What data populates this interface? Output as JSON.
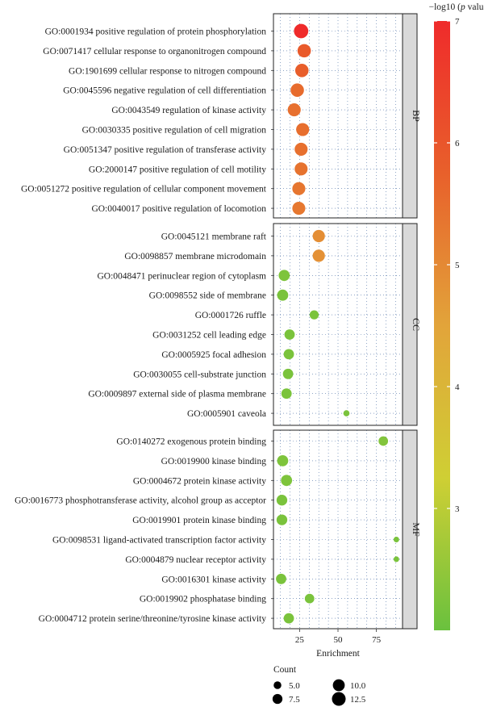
{
  "chart_data": {
    "type": "scatter",
    "xlabel": "Enrichment",
    "xlim": [
      8,
      92
    ],
    "xticks": [
      25,
      50,
      75
    ],
    "x_tick_labels": [
      "25",
      "50",
      "75"
    ],
    "grid": true,
    "color_legend": {
      "title_prefix": "−log10 (",
      "title_italic": "p",
      "title_suffix": " value)",
      "range": [
        2,
        7
      ],
      "ticks": [
        3,
        4,
        5,
        6,
        7
      ],
      "tick_labels": [
        "3",
        "4",
        "5",
        "6",
        "7"
      ],
      "colors": [
        "#6ac13e",
        "#cfcf34",
        "#e2a43a",
        "#e8602b",
        "#ef2b2b"
      ]
    },
    "size_legend": {
      "title": "Count",
      "values": [
        5.0,
        7.5,
        10.0,
        12.5
      ],
      "labels": [
        "5.0",
        "7.5",
        "10.0",
        "12.5"
      ],
      "position": "bottom"
    },
    "panels": [
      {
        "name": "BP",
        "terms": [
          {
            "label": "GO:0001934 positive regulation of protein phosphorylation",
            "x": 26,
            "count": 13.5,
            "neglog10p": 7.0
          },
          {
            "label": "GO:0071417 cellular response to organonitrogen compound",
            "x": 28,
            "count": 12.0,
            "neglog10p": 5.9
          },
          {
            "label": "GO:1901699 cellular response to nitrogen compound",
            "x": 26.5,
            "count": 12.0,
            "neglog10p": 5.8
          },
          {
            "label": "GO:0045596 negative regulation of cell differentiation",
            "x": 23.5,
            "count": 12.0,
            "neglog10p": 5.55
          },
          {
            "label": "GO:0043549 regulation of kinase activity",
            "x": 21.5,
            "count": 11.5,
            "neglog10p": 5.45
          },
          {
            "label": "GO:0030335 positive regulation of cell migration",
            "x": 27,
            "count": 11.5,
            "neglog10p": 5.5
          },
          {
            "label": "GO:0051347 positive regulation of transferase activity",
            "x": 26,
            "count": 11.5,
            "neglog10p": 5.45
          },
          {
            "label": "GO:2000147 positive regulation of cell motility",
            "x": 26,
            "count": 11.5,
            "neglog10p": 5.4
          },
          {
            "label": "GO:0051272 positive regulation of cellular component movement",
            "x": 24.5,
            "count": 11.5,
            "neglog10p": 5.35
          },
          {
            "label": "GO:0040017 positive regulation of locomotion",
            "x": 24.5,
            "count": 11.5,
            "neglog10p": 5.3
          }
        ]
      },
      {
        "name": "CC",
        "terms": [
          {
            "label": "GO:0045121 membrane raft",
            "x": 37.5,
            "count": 10.5,
            "neglog10p": 4.9
          },
          {
            "label": "GO:0098857 membrane microdomain",
            "x": 37.5,
            "count": 10.5,
            "neglog10p": 4.85
          },
          {
            "label": "GO:0048471 perinuclear region of cytoplasm",
            "x": 15,
            "count": 9.0,
            "neglog10p": 2.25
          },
          {
            "label": "GO:0098552 side of membrane",
            "x": 14,
            "count": 9.0,
            "neglog10p": 2.2
          },
          {
            "label": "GO:0001726 ruffle",
            "x": 34.5,
            "count": 6.5,
            "neglog10p": 2.2
          },
          {
            "label": "GO:0031252 cell leading edge",
            "x": 18.5,
            "count": 8.0,
            "neglog10p": 2.2
          },
          {
            "label": "GO:0005925 focal adhesion",
            "x": 18,
            "count": 8.0,
            "neglog10p": 2.2
          },
          {
            "label": "GO:0030055 cell-substrate junction",
            "x": 17.5,
            "count": 8.0,
            "neglog10p": 2.2
          },
          {
            "label": "GO:0009897 external side of plasma membrane",
            "x": 16.5,
            "count": 8.0,
            "neglog10p": 2.2
          },
          {
            "label": "GO:0005901 caveola",
            "x": 55.5,
            "count": 3.5,
            "neglog10p": 2.2
          }
        ]
      },
      {
        "name": "MF",
        "terms": [
          {
            "label": "GO:0140272 exogenous protein binding",
            "x": 79.5,
            "count": 7.0,
            "neglog10p": 2.3
          },
          {
            "label": "GO:0019900 kinase binding",
            "x": 14,
            "count": 9.0,
            "neglog10p": 2.25
          },
          {
            "label": "GO:0004672 protein kinase activity",
            "x": 16.5,
            "count": 9.0,
            "neglog10p": 2.25
          },
          {
            "label": "GO:0016773 phosphotransferase activity, alcohol group as acceptor",
            "x": 13.5,
            "count": 8.5,
            "neglog10p": 2.2
          },
          {
            "label": "GO:0019901 protein kinase binding",
            "x": 13.5,
            "count": 8.5,
            "neglog10p": 2.2
          },
          {
            "label": "GO:0098531 ligand-activated transcription factor activity",
            "x": 88,
            "count": 3.0,
            "neglog10p": 2.2
          },
          {
            "label": "GO:0004879 nuclear receptor activity",
            "x": 88,
            "count": 3.0,
            "neglog10p": 2.2
          },
          {
            "label": "GO:0016301 kinase activity",
            "x": 13,
            "count": 8.0,
            "neglog10p": 2.2
          },
          {
            "label": "GO:0019902 phosphatase binding",
            "x": 31.5,
            "count": 7.0,
            "neglog10p": 2.2
          },
          {
            "label": "GO:0004712 protein serine/threonine/tyrosine kinase activity",
            "x": 18,
            "count": 8.0,
            "neglog10p": 2.2
          }
        ]
      }
    ]
  }
}
